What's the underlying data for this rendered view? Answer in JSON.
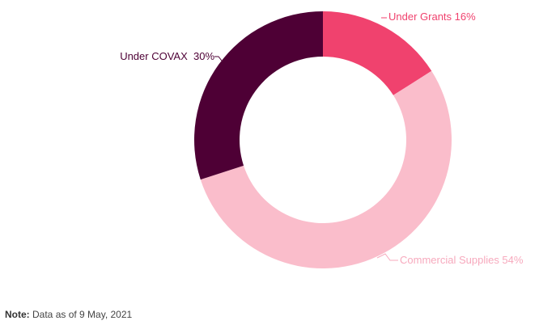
{
  "chart_data": {
    "type": "pie",
    "donut": true,
    "categories": [
      "Under Grants",
      "Commercial Supplies",
      "Under COVAX"
    ],
    "values": [
      16,
      54,
      30
    ],
    "unit": "%",
    "labels": [
      "Under Grants 16%",
      "Commercial Supplies 54%",
      "Under COVAX  30%"
    ],
    "colors": [
      "#f0426e",
      "#fabdcb",
      "#4e0035"
    ],
    "label_colors": [
      "#f0426e",
      "#f7a9bd",
      "#4e0035"
    ],
    "legend": "none"
  },
  "note": {
    "label": "Note:",
    "text": " Data as of 9 May, 2021"
  }
}
